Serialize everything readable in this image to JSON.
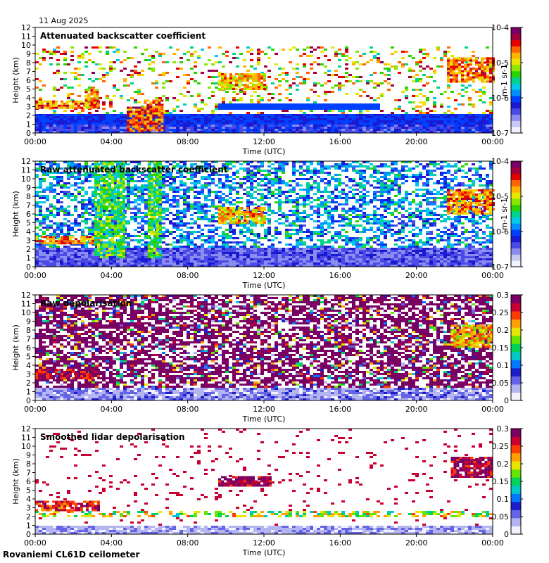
{
  "header": {
    "date": "11 Aug 2025"
  },
  "footer": {
    "station": "Rovaniemi CL61D ceilometer"
  },
  "palettes": {
    "rainbow": [
      "#f2f2ff",
      "#c8c8f5",
      "#8c8cf0",
      "#4a4ae6",
      "#1a1ad2",
      "#0040ff",
      "#0090ff",
      "#00c8e6",
      "#00d28c",
      "#2ad200",
      "#8ce600",
      "#e6e600",
      "#ffb400",
      "#ff6400",
      "#e60000",
      "#a0003c",
      "#780064"
    ],
    "depol": [
      "#f2f2ff",
      "#b4b4f0",
      "#6464e6",
      "#1e1ec8",
      "#0078ff",
      "#00c8c8",
      "#00d25a",
      "#64e600",
      "#e6e600",
      "#ffa000",
      "#ff3c00",
      "#c80032",
      "#7a0064"
    ]
  },
  "chart_data": [
    {
      "type": "heatmap",
      "title": "Attenuated backscatter coefficient",
      "xlabel": "Time (UTC)",
      "ylabel": "Height (km)",
      "x_ticks": [
        "00:00",
        "04:00",
        "08:00",
        "12:00",
        "16:00",
        "20:00",
        "00:00"
      ],
      "y_ticks": [
        0,
        1,
        2,
        3,
        4,
        5,
        6,
        7,
        8,
        9,
        10,
        11,
        12
      ],
      "ylim": [
        0,
        12
      ],
      "colorbar": {
        "scale": "log",
        "labels": [
          "10-7",
          "10-6",
          "10-5",
          "10-4"
        ],
        "exponents": [
          -7,
          -6,
          -5,
          -4
        ],
        "unit": "m-1 sr-1",
        "palette": "rainbow"
      },
      "features": [
        {
          "t0": 0.0,
          "t1": 3.3,
          "h0": 2.8,
          "h1": 3.7,
          "v": 0.78
        },
        {
          "t0": 2.6,
          "t1": 3.3,
          "h0": 3.0,
          "h1": 5.0,
          "v": 0.75
        },
        {
          "t0": 4.8,
          "t1": 5.6,
          "h0": 0.2,
          "h1": 3.0,
          "v": 0.82
        },
        {
          "t0": 5.7,
          "t1": 6.6,
          "h0": 0.3,
          "h1": 3.8,
          "v": 0.8
        },
        {
          "t0": 9.6,
          "t1": 12.0,
          "h0": 5.0,
          "h1": 6.8,
          "v": 0.72
        },
        {
          "t0": 21.6,
          "t1": 24.0,
          "h0": 5.8,
          "h1": 8.6,
          "v": 0.78
        }
      ]
    },
    {
      "type": "heatmap",
      "title": "Raw attenuated backscatter coefficient",
      "xlabel": "Time (UTC)",
      "ylabel": "Height (km)",
      "x_ticks": [
        "00:00",
        "04:00",
        "08:00",
        "12:00",
        "16:00",
        "20:00",
        "00:00"
      ],
      "y_ticks": [
        0,
        1,
        2,
        3,
        4,
        5,
        6,
        7,
        8,
        9,
        10,
        11,
        12
      ],
      "ylim": [
        0,
        12
      ],
      "colorbar": {
        "scale": "log",
        "labels": [
          "10-7",
          "10-6",
          "10-5",
          "10-4"
        ],
        "exponents": [
          -7,
          -6,
          -5,
          -4
        ],
        "unit": "m-1 sr-1",
        "palette": "rainbow"
      },
      "features": [
        {
          "t0": 0.0,
          "t1": 3.3,
          "h0": 2.6,
          "h1": 3.5,
          "v": 0.78
        },
        {
          "t0": 3.1,
          "t1": 4.6,
          "h0": 1.0,
          "h1": 12.0,
          "v": 0.55
        },
        {
          "t0": 5.9,
          "t1": 6.5,
          "h0": 1.0,
          "h1": 12.0,
          "v": 0.55
        },
        {
          "t0": 9.6,
          "t1": 12.0,
          "h0": 5.0,
          "h1": 6.8,
          "v": 0.72
        },
        {
          "t0": 21.6,
          "t1": 24.0,
          "h0": 6.0,
          "h1": 8.8,
          "v": 0.78
        }
      ]
    },
    {
      "type": "heatmap",
      "title": "Raw depolarisation",
      "xlabel": "Time (UTC)",
      "ylabel": "Height (km)",
      "x_ticks": [
        "00:00",
        "04:00",
        "08:00",
        "12:00",
        "16:00",
        "20:00",
        "00:00"
      ],
      "y_ticks": [
        0,
        1,
        2,
        3,
        4,
        5,
        6,
        7,
        8,
        9,
        10,
        11,
        12
      ],
      "ylim": [
        0,
        12
      ],
      "colorbar": {
        "scale": "linear",
        "labels": [
          "0",
          "0.05",
          "0.1",
          "0.15",
          "0.2",
          "0.25",
          "0.3"
        ],
        "values": [
          0,
          0.05,
          0.1,
          0.15,
          0.2,
          0.25,
          0.3
        ],
        "palette": "depol"
      },
      "features": [
        {
          "t0": 0.0,
          "t1": 3.3,
          "h0": 2.6,
          "h1": 3.6,
          "v": 0.9
        },
        {
          "t0": 21.8,
          "t1": 24.0,
          "h0": 6.0,
          "h1": 8.6,
          "v": 0.7
        }
      ]
    },
    {
      "type": "heatmap",
      "title": "Smoothed lidar depolarisation",
      "xlabel": "Time (UTC)",
      "ylabel": "Height (km)",
      "x_ticks": [
        "00:00",
        "04:00",
        "08:00",
        "12:00",
        "16:00",
        "20:00",
        "00:00"
      ],
      "y_ticks": [
        0,
        1,
        2,
        3,
        4,
        5,
        6,
        7,
        8,
        9,
        10,
        11,
        12
      ],
      "ylim": [
        0,
        12
      ],
      "colorbar": {
        "scale": "linear",
        "labels": [
          "0",
          "0.05",
          "0.1",
          "0.15",
          "0.2",
          "0.25",
          "0.3"
        ],
        "values": [
          0,
          0.05,
          0.1,
          0.15,
          0.2,
          0.25,
          0.3
        ],
        "palette": "depol"
      },
      "features": [
        {
          "t0": 0.0,
          "t1": 3.3,
          "h0": 2.8,
          "h1": 3.8,
          "v": 0.85
        },
        {
          "t0": 9.6,
          "t1": 12.3,
          "h0": 5.4,
          "h1": 6.6,
          "v": 0.95
        },
        {
          "t0": 21.8,
          "t1": 24.0,
          "h0": 6.4,
          "h1": 8.8,
          "v": 0.92
        }
      ]
    }
  ]
}
